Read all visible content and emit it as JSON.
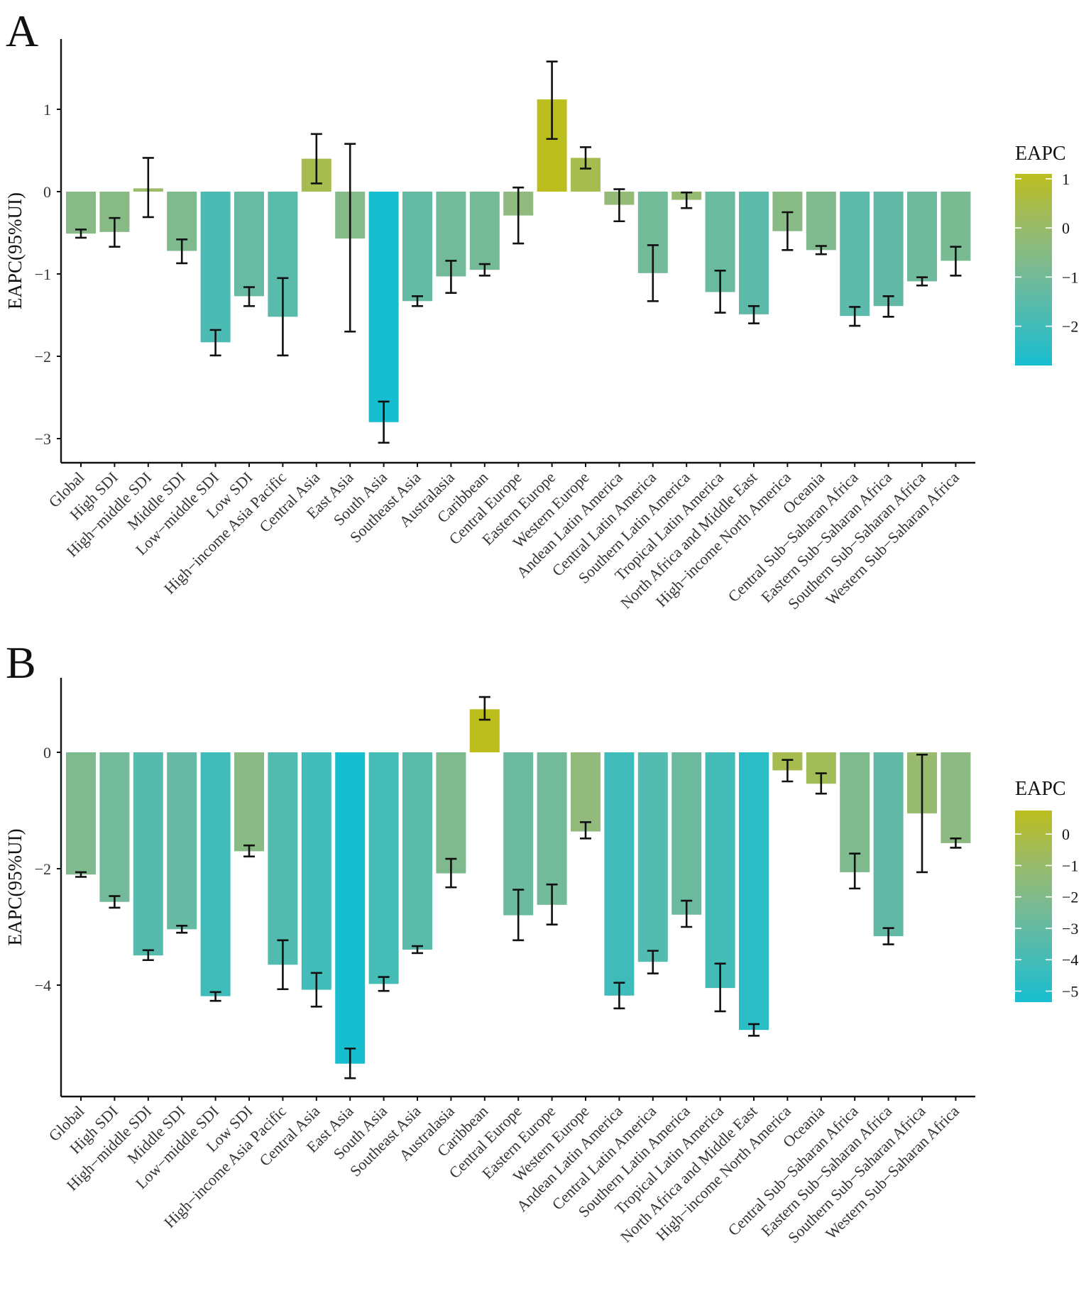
{
  "chart_data": [
    {
      "type": "bar",
      "panel": "A",
      "ylabel": "EAPC(95%UI)",
      "legend_title": "EAPC",
      "legend_ticks": [
        "1",
        "0",
        "−1",
        "−2"
      ],
      "legend_tick_values": [
        1,
        0,
        -1,
        -2
      ],
      "color_range": [
        -2.8,
        1.1
      ],
      "ylim": [
        -3.3,
        1.8
      ],
      "yticks": [
        1,
        0,
        -1,
        -2,
        -3
      ],
      "ytick_labels": [
        "1",
        "0",
        "−1",
        "−2",
        "−3"
      ],
      "categories": [
        "Global",
        "High SDI",
        "High−middle SDI",
        "Middle SDI",
        "Low−middle SDI",
        "Low SDI",
        "High−income Asia Pacific",
        "Central Asia",
        "East Asia",
        "South Asia",
        "Southeast Asia",
        "Australasia",
        "Caribbean",
        "Central Europe",
        "Eastern Europe",
        "Western Europe",
        "Andean Latin America",
        "Central Latin America",
        "Southern Latin America",
        "Tropical Latin America",
        "North Africa and Middle East",
        "High−income North America",
        "Oceania",
        "Central Sub−Saharan Africa",
        "Eastern Sub−Saharan Africa",
        "Southern Sub−Saharan Africa",
        "Western Sub−Saharan Africa"
      ],
      "values": [
        -0.51,
        -0.49,
        0.04,
        -0.72,
        -1.83,
        -1.27,
        -1.52,
        0.4,
        -0.57,
        -2.8,
        -1.33,
        -1.03,
        -0.95,
        -0.29,
        1.12,
        0.41,
        -0.16,
        -0.99,
        -0.1,
        -1.22,
        -1.49,
        -0.48,
        -0.71,
        -1.51,
        -1.39,
        -1.09,
        -0.84
      ],
      "lower": [
        -0.56,
        -0.67,
        -0.31,
        -0.87,
        -1.99,
        -1.39,
        -1.99,
        0.1,
        -1.7,
        -3.05,
        -1.39,
        -1.23,
        -1.02,
        -0.63,
        0.64,
        0.28,
        -0.36,
        -1.33,
        -0.2,
        -1.47,
        -1.6,
        -0.71,
        -0.76,
        -1.63,
        -1.52,
        -1.14,
        -1.02
      ],
      "upper": [
        -0.46,
        -0.32,
        0.41,
        -0.58,
        -1.68,
        -1.16,
        -1.05,
        0.7,
        0.58,
        -2.55,
        -1.27,
        -0.84,
        -0.88,
        0.05,
        1.58,
        0.54,
        0.03,
        -0.65,
        -0.01,
        -0.96,
        -1.39,
        -0.25,
        -0.66,
        -1.4,
        -1.27,
        -1.04,
        -0.67
      ]
    },
    {
      "type": "bar",
      "panel": "B",
      "ylabel": "EAPC(95%UI)",
      "legend_title": "EAPC",
      "legend_ticks": [
        "0",
        "−1",
        "−2",
        "−3",
        "−4",
        "−5"
      ],
      "legend_tick_values": [
        0,
        -1,
        -2,
        -3,
        -4,
        -5
      ],
      "color_range": [
        -5.35,
        0.75
      ],
      "ylim": [
        -5.9,
        1.3
      ],
      "yticks": [
        0,
        -2,
        -4
      ],
      "ytick_labels": [
        "0",
        "−2",
        "−4"
      ],
      "categories": [
        "Global",
        "High SDI",
        "High−middle SDI",
        "Middle SDI",
        "Low−middle SDI",
        "Low SDI",
        "High−income Asia Pacific",
        "Central Asia",
        "East Asia",
        "South Asia",
        "Southeast Asia",
        "Australasia",
        "Caribbean",
        "Central Europe",
        "Eastern Europe",
        "Western Europe",
        "Andean Latin America",
        "Central Latin America",
        "Southern Latin America",
        "Tropical Latin America",
        "North Africa and Middle East",
        "High−income North America",
        "Oceania",
        "Central Sub−Saharan Africa",
        "Eastern Sub−Saharan Africa",
        "Southern Sub−Saharan Africa",
        "Western Sub−Saharan Africa"
      ],
      "values": [
        -2.1,
        -2.57,
        -3.49,
        -3.04,
        -4.19,
        -1.7,
        -3.65,
        -4.08,
        -5.35,
        -3.98,
        -3.39,
        -2.08,
        0.74,
        -2.8,
        -2.62,
        -1.36,
        -4.18,
        -3.6,
        -2.79,
        -4.05,
        -4.77,
        -0.31,
        -0.54,
        -2.06,
        -3.16,
        -1.05,
        -1.56
      ],
      "lower": [
        -2.14,
        -2.67,
        -3.57,
        -3.1,
        -4.27,
        -1.79,
        -4.07,
        -4.37,
        -5.6,
        -4.1,
        -3.45,
        -2.32,
        0.56,
        -3.23,
        -2.96,
        -1.48,
        -4.4,
        -3.8,
        -3.0,
        -4.45,
        -4.87,
        -0.5,
        -0.71,
        -2.34,
        -3.3,
        -2.06,
        -1.64
      ],
      "upper": [
        -2.06,
        -2.47,
        -3.4,
        -2.98,
        -4.12,
        -1.6,
        -3.23,
        -3.79,
        -5.09,
        -3.86,
        -3.33,
        -1.83,
        0.95,
        -2.36,
        -2.27,
        -1.2,
        -3.96,
        -3.41,
        -2.55,
        -3.63,
        -4.67,
        -0.13,
        -0.36,
        -1.74,
        -3.02,
        -0.04,
        -1.48
      ]
    }
  ]
}
